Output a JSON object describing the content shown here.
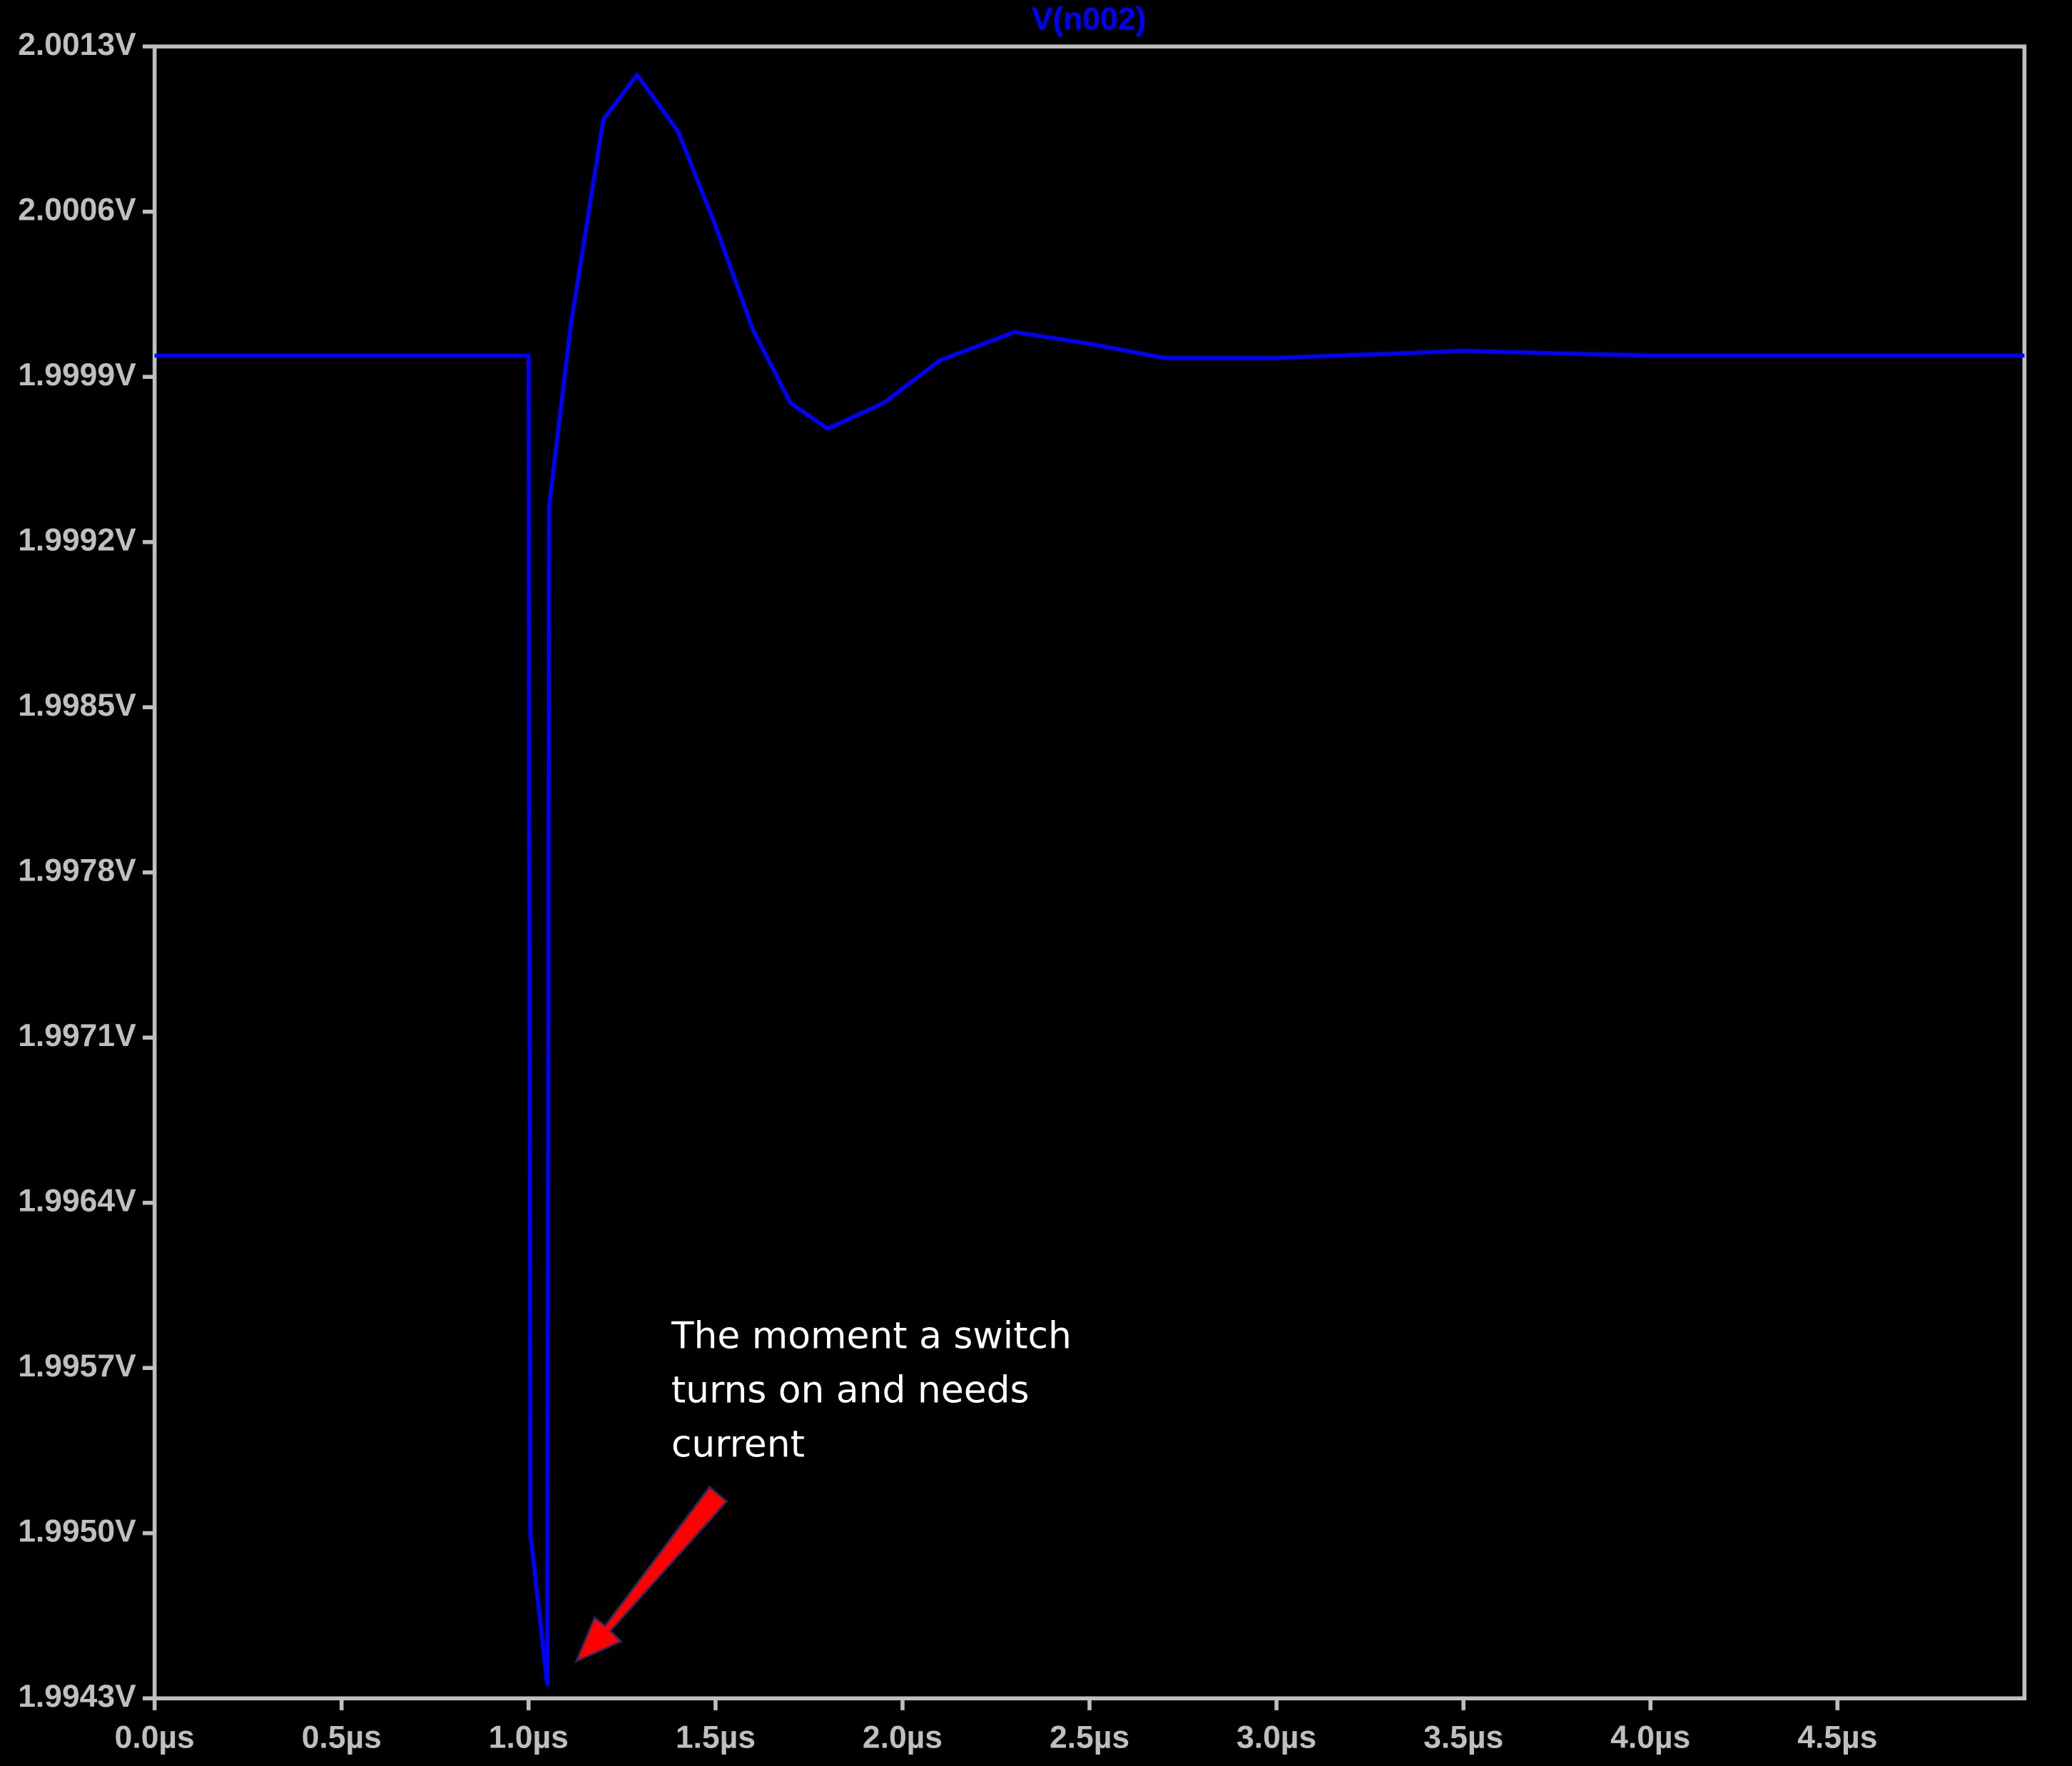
{
  "chart_data": {
    "type": "line",
    "x": [
      0,
      1.0,
      1.005,
      1.05,
      1.055,
      1.113,
      1.2,
      1.29,
      1.4,
      1.5,
      1.6,
      1.7,
      1.8,
      1.95,
      2.1,
      2.3,
      2.5,
      2.7,
      3.0,
      3.5,
      4.0,
      5.0
    ],
    "series": [
      {
        "name": "V(n002)",
        "color": "#0000ff",
        "values": [
          1.99999,
          1.99999,
          1.995,
          1.99436,
          1.99935,
          2.00012,
          2.00099,
          2.00118,
          2.00094,
          2.00054,
          2.0001,
          1.99979,
          1.99968,
          1.99979,
          1.99997,
          2.00009,
          2.00004,
          1.99998,
          1.99998,
          2.00001,
          1.99999,
          1.99999
        ]
      }
    ],
    "xlim": [
      0,
      5
    ],
    "xticks": [
      {
        "value": 0,
        "label": "0.0µs"
      },
      {
        "value": 0.5,
        "label": "0.5µs"
      },
      {
        "value": 1,
        "label": "1.0µs"
      },
      {
        "value": 1.5,
        "label": "1.5µs"
      },
      {
        "value": 2,
        "label": "2.0µs"
      },
      {
        "value": 2.5,
        "label": "2.5µs"
      },
      {
        "value": 3,
        "label": "3.0µs"
      },
      {
        "value": 3.5,
        "label": "3.5µs"
      },
      {
        "value": 4,
        "label": "4.0µs"
      },
      {
        "value": 4.5,
        "label": "4.5µs"
      }
    ],
    "ylim": [
      1.9943,
      2.0013
    ],
    "yticks": [
      {
        "value": 1.9943,
        "label": "1.9943V"
      },
      {
        "value": 1.995,
        "label": "1.9950V"
      },
      {
        "value": 1.9957,
        "label": "1.9957V"
      },
      {
        "value": 1.9964,
        "label": "1.9964V"
      },
      {
        "value": 1.9971,
        "label": "1.9971V"
      },
      {
        "value": 1.9978,
        "label": "1.9978V"
      },
      {
        "value": 1.9985,
        "label": "1.9985V"
      },
      {
        "value": 1.9992,
        "label": "1.9992V"
      },
      {
        "value": 1.9999,
        "label": "1.9999V"
      },
      {
        "value": 2.0006,
        "label": "2.0006V"
      },
      {
        "value": 2.0013,
        "label": "2.0013V"
      }
    ],
    "annotation": "The moment a switch turns on and needs current"
  }
}
